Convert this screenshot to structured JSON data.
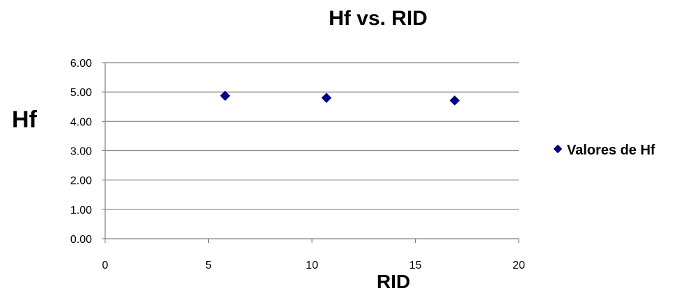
{
  "chart_data": {
    "type": "scatter",
    "title": "Hf vs. RID",
    "xlabel": "RID",
    "ylabel": "Hf",
    "xlim": [
      0,
      20
    ],
    "ylim": [
      0,
      6
    ],
    "xticks": [
      0,
      5,
      10,
      15,
      20
    ],
    "yticks": [
      0,
      1,
      2,
      3,
      4,
      5,
      6
    ],
    "xtick_labels": [
      "0",
      "5",
      "10",
      "15",
      "20"
    ],
    "ytick_labels": [
      "0.00",
      "1.00",
      "2.00",
      "3.00",
      "4.00",
      "5.00",
      "6.00"
    ],
    "grid": "horizontal",
    "legend_position": "right",
    "series": [
      {
        "name": "Valores de Hf",
        "color": "#000080",
        "marker": "diamond",
        "points": [
          {
            "x": 5.8,
            "y": 4.87
          },
          {
            "x": 10.7,
            "y": 4.8
          },
          {
            "x": 16.9,
            "y": 4.71
          }
        ]
      }
    ]
  }
}
